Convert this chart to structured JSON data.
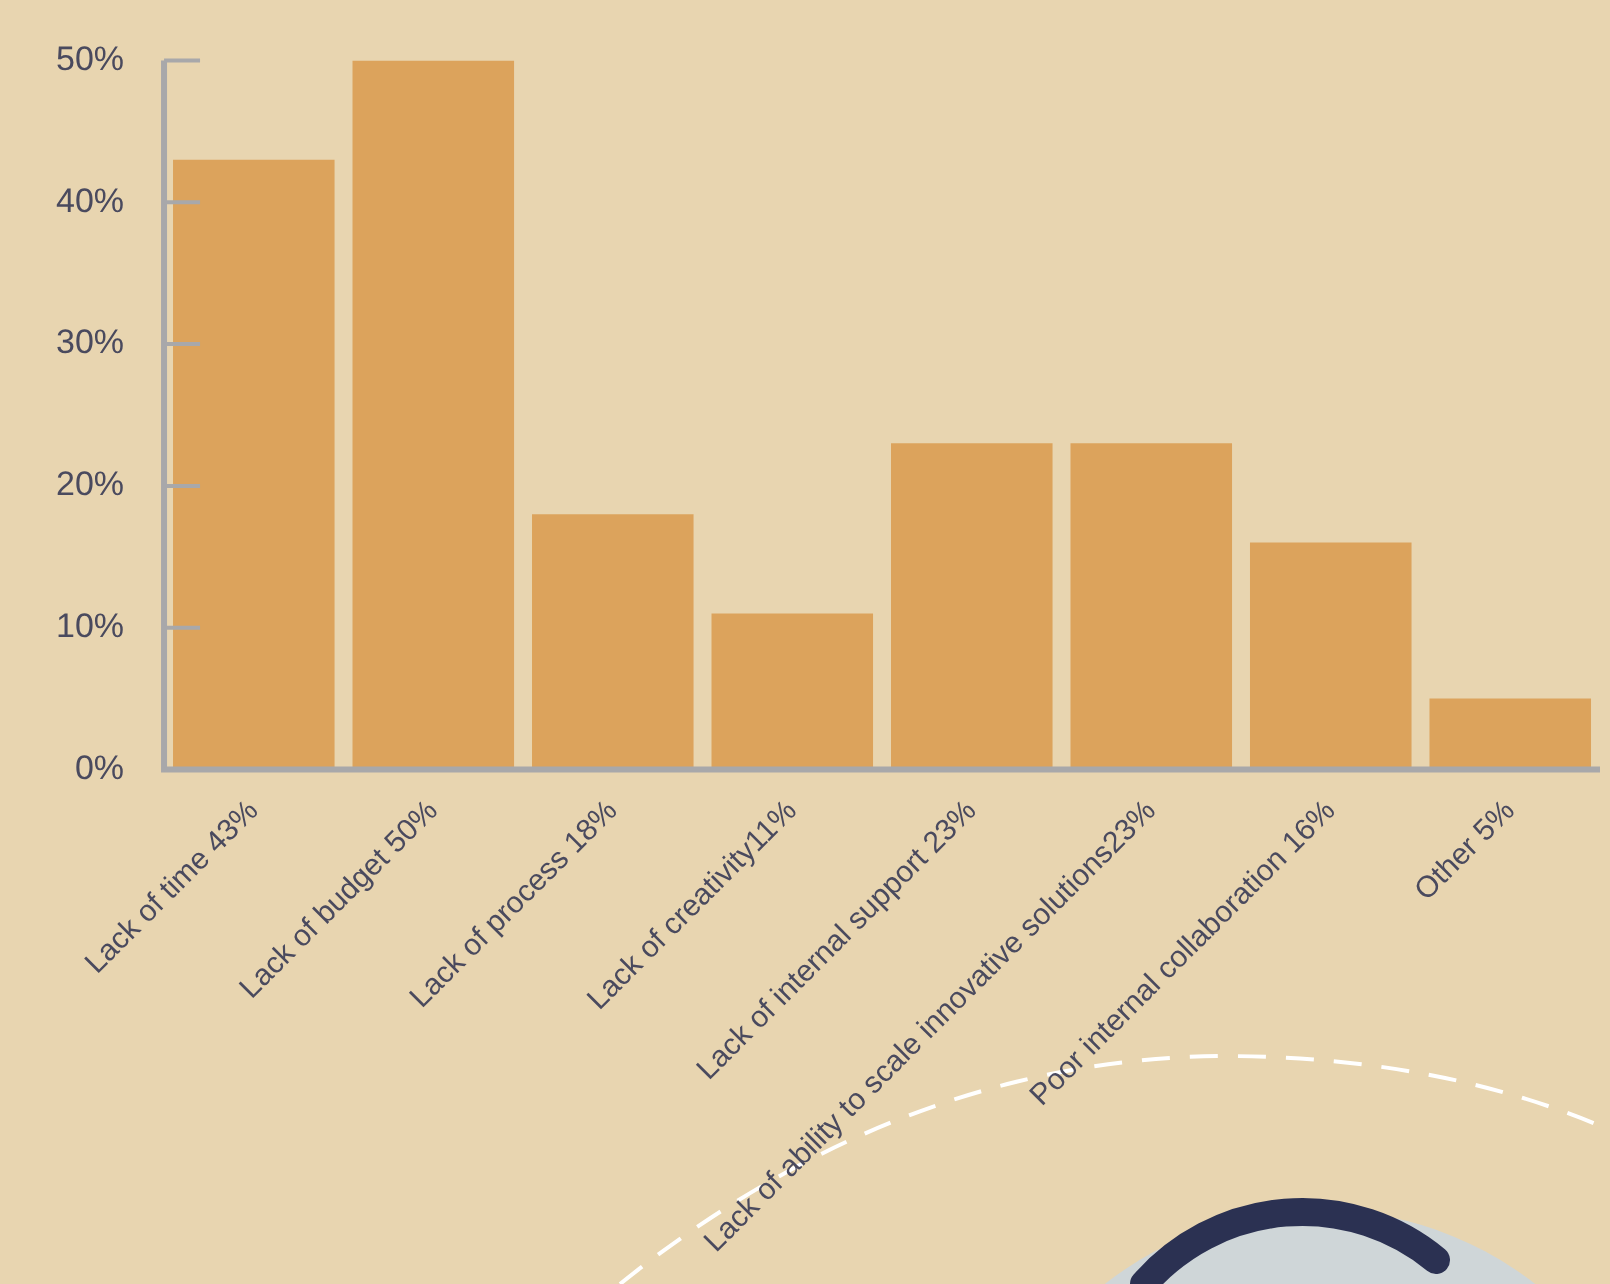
{
  "chart_data": {
    "type": "bar",
    "categories": [
      "Lack of time 43%",
      "Lack of budget 50%",
      "Lack of process 18%",
      "Lack of creativity11%",
      "Lack of internal support 23%",
      "Lack of ability to scale innovative solutions23%",
      "Poor internal collaboration 16%",
      "Other 5%"
    ],
    "values": [
      43,
      50,
      18,
      11,
      23,
      23,
      16,
      5
    ],
    "color": "#dca35c",
    "ylim": [
      0,
      50
    ],
    "yticks": [
      {
        "value": 0,
        "label": "0%"
      },
      {
        "value": 10,
        "label": "10%"
      },
      {
        "value": 20,
        "label": "20%"
      },
      {
        "value": 30,
        "label": "30%"
      },
      {
        "value": 40,
        "label": "40%"
      },
      {
        "value": 50,
        "label": "50%"
      }
    ],
    "grid": false,
    "legend": false
  }
}
